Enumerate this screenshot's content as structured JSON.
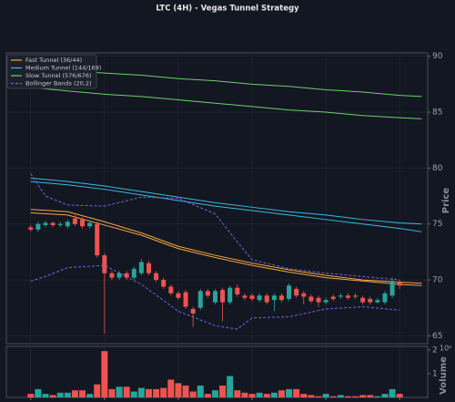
{
  "chart_data": {
    "type": "candlestick",
    "title": "LTC (4H) - Vegas Tunnel Strategy",
    "ylabel": "Price",
    "volume_label": "Volume",
    "volume_scale": "10⁵",
    "xlim": [
      -3.3,
      53.8
    ],
    "xticks": [
      0,
      10,
      20,
      30,
      40,
      50
    ],
    "ylim": [
      64.3,
      90.3
    ],
    "yticks": [
      65,
      70,
      75,
      80,
      85,
      90
    ],
    "volume_ylim": [
      0,
      2.15
    ],
    "volume_yticks": [
      1,
      2
    ],
    "grid": true,
    "legend": "upper left",
    "up_color": "#26a69a",
    "down_color": "#ef5350",
    "candles": {
      "open": [
        74.7,
        74.5,
        74.9,
        75.1,
        74.9,
        74.8,
        75.5,
        75.4,
        74.8,
        75.0,
        72.2,
        70.6,
        70.2,
        70.6,
        70.2,
        70.6,
        71.5,
        70.6,
        70.0,
        69.4,
        68.8,
        68.9,
        67.4,
        67.5,
        69.0,
        68.0,
        69.1,
        68.0,
        69.3,
        68.6,
        68.6,
        68.2,
        68.6,
        68.2,
        68.6,
        68.3,
        69.2,
        68.8,
        68.5,
        68.4,
        68.0,
        68.5,
        68.5,
        68.6,
        68.6,
        68.4,
        68.3,
        68.0,
        68.0,
        68.6,
        69.8
      ],
      "high": [
        74.9,
        75.2,
        75.3,
        75.2,
        75.2,
        75.4,
        75.8,
        75.6,
        75.3,
        75.2,
        72.4,
        70.8,
        70.8,
        70.8,
        71.2,
        71.9,
        71.7,
        70.8,
        70.2,
        69.6,
        69.0,
        69.1,
        67.6,
        69.2,
        69.2,
        69.2,
        69.3,
        69.5,
        69.6,
        68.8,
        68.8,
        68.8,
        68.8,
        68.8,
        68.8,
        69.7,
        69.4,
        69.0,
        68.7,
        68.6,
        68.4,
        68.7,
        68.8,
        68.8,
        68.8,
        68.6,
        68.5,
        68.4,
        69.0,
        70.2,
        70.0
      ],
      "low": [
        74.3,
        74.3,
        74.7,
        74.7,
        74.7,
        74.6,
        74.8,
        74.6,
        74.6,
        72.0,
        65.2,
        70.0,
        70.0,
        70.0,
        70.0,
        70.4,
        70.4,
        69.8,
        69.2,
        68.6,
        68.2,
        67.4,
        65.8,
        67.3,
        68.4,
        67.8,
        66.3,
        67.8,
        68.5,
        68.2,
        68.1,
        68.0,
        67.8,
        67.2,
        68.0,
        68.1,
        68.4,
        67.8,
        67.9,
        67.6,
        67.8,
        68.1,
        68.3,
        68.2,
        68.3,
        67.8,
        67.8,
        67.9,
        67.8,
        68.4,
        69.2
      ],
      "close": [
        74.5,
        75.0,
        75.1,
        74.9,
        75.0,
        75.2,
        75.0,
        74.8,
        75.1,
        72.2,
        70.6,
        70.2,
        70.6,
        70.2,
        71.0,
        71.6,
        70.6,
        70.0,
        69.4,
        68.8,
        68.4,
        67.6,
        67.0,
        69.0,
        68.6,
        69.0,
        68.0,
        69.3,
        68.7,
        68.4,
        68.3,
        68.6,
        68.0,
        68.6,
        68.2,
        69.5,
        68.6,
        68.5,
        68.1,
        68.0,
        68.2,
        68.3,
        68.6,
        68.4,
        68.5,
        68.0,
        68.0,
        68.2,
        68.8,
        69.8,
        69.5
      ],
      "volume": [
        0.15,
        0.35,
        0.15,
        0.1,
        0.2,
        0.2,
        0.3,
        0.3,
        0.15,
        0.55,
        1.95,
        0.35,
        0.45,
        0.45,
        0.25,
        0.4,
        0.35,
        0.35,
        0.4,
        0.75,
        0.6,
        0.5,
        0.25,
        0.5,
        0.15,
        0.3,
        0.5,
        0.9,
        0.3,
        0.2,
        0.15,
        0.2,
        0.15,
        0.2,
        0.3,
        0.35,
        0.35,
        0.15,
        0.1,
        0.05,
        0.15,
        0.05,
        0.1,
        0.05,
        0.05,
        0.1,
        0.1,
        0.05,
        0.15,
        0.35,
        0.15
      ]
    },
    "series": [
      {
        "name": "Fast Tunnel (36/44)",
        "color": "#f5a742",
        "dash": false,
        "x": [
          0,
          5,
          10,
          15,
          20,
          25,
          30,
          35,
          40,
          45,
          50,
          53
        ],
        "lines": [
          {
            "values": [
              76.3,
              76.1,
              75.2,
              74.2,
              73.0,
              72.2,
              71.5,
              70.9,
              70.4,
              70.0,
              69.8,
              69.7
            ]
          },
          {
            "values": [
              76.0,
              75.8,
              74.9,
              74.0,
              72.8,
              72.0,
              71.3,
              70.7,
              70.2,
              69.9,
              69.6,
              69.5
            ]
          }
        ]
      },
      {
        "name": "Medium Tunnel (144/169)",
        "color": "#3cb8e0",
        "dash": false,
        "x": [
          0,
          5,
          10,
          15,
          20,
          25,
          30,
          35,
          40,
          45,
          50,
          53
        ],
        "lines": [
          {
            "values": [
              79.1,
              78.8,
              78.4,
              77.9,
              77.4,
              76.9,
              76.5,
              76.1,
              75.8,
              75.4,
              75.1,
              75.0
            ]
          },
          {
            "values": [
              78.8,
              78.5,
              78.1,
              77.6,
              77.1,
              76.6,
              76.2,
              75.8,
              75.4,
              75.0,
              74.6,
              74.3
            ]
          }
        ]
      },
      {
        "name": "Slow Tunnel (576/676)",
        "color": "#6ccf6c",
        "dash": false,
        "x": [
          0,
          5,
          10,
          15,
          20,
          25,
          30,
          35,
          40,
          45,
          50,
          53
        ],
        "lines": [
          {
            "values": [
              88.9,
              88.7,
              88.5,
              88.3,
              88.0,
              87.8,
              87.5,
              87.3,
              87.0,
              86.8,
              86.5,
              86.4
            ]
          },
          {
            "values": [
              87.2,
              86.9,
              86.6,
              86.4,
              86.1,
              85.8,
              85.5,
              85.2,
              85.0,
              84.7,
              84.5,
              84.4
            ]
          }
        ]
      },
      {
        "name": "Bollinger Bands (20,2)",
        "color": "#7b5fe0",
        "dash": true,
        "x": [
          0,
          2,
          5,
          10,
          15,
          20,
          25,
          28,
          30,
          35,
          40,
          45,
          50
        ],
        "lines": [
          {
            "values": [
              79.5,
              77.5,
              76.7,
              76.6,
              77.4,
              77.3,
              75.9,
              73.4,
              71.8,
              71.0,
              70.6,
              70.3,
              70.0
            ]
          },
          {
            "values": [
              69.9,
              70.3,
              71.1,
              71.3,
              69.6,
              67.2,
              65.9,
              65.6,
              66.6,
              66.7,
              67.4,
              67.6,
              67.3
            ]
          }
        ]
      }
    ]
  }
}
